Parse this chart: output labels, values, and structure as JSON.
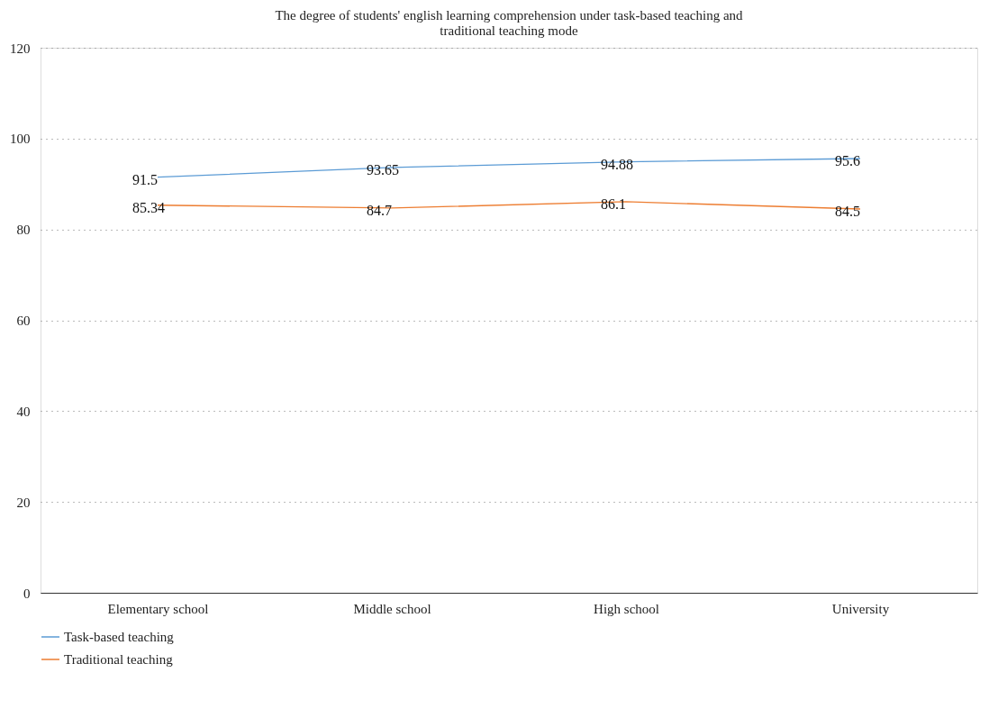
{
  "chart_data": {
    "type": "line",
    "title": "The degree of students' english learning comprehension under task-based teaching and traditional teaching mode",
    "categories": [
      "Elementary school",
      "Middle school",
      "High school",
      "University"
    ],
    "series": [
      {
        "name": "Task-based teaching",
        "color": "#5b9bd5",
        "values": [
          91.5,
          93.65,
          94.88,
          95.6
        ]
      },
      {
        "name": "Traditional teaching",
        "color": "#ed7d31",
        "values": [
          85.34,
          84.7,
          86.1,
          84.5
        ]
      }
    ],
    "ylim": [
      0,
      120
    ],
    "yticks": [
      0,
      20,
      40,
      60,
      80,
      100,
      120
    ],
    "grid": "y",
    "legend": "bottom left",
    "data_labels": true,
    "marker": "none",
    "line_style": "solid"
  }
}
